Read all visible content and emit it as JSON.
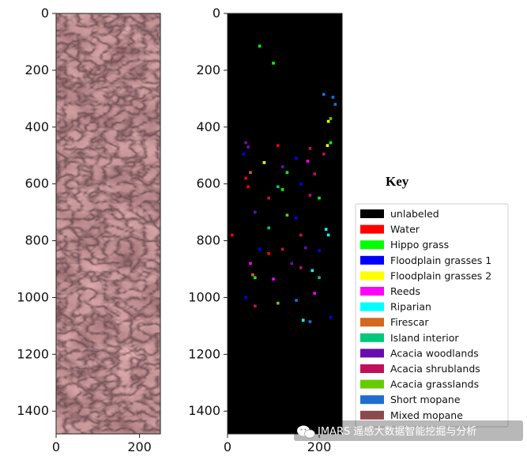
{
  "chart_data": [
    {
      "type": "image",
      "xlim": [
        0,
        250
      ],
      "ylim": [
        1480,
        0
      ],
      "xticks": [
        0,
        200
      ],
      "yticks": [
        0,
        200,
        400,
        600,
        800,
        1000,
        1200,
        1400
      ],
      "xtick_labels": [
        "0",
        "200"
      ],
      "ytick_labels": [
        "0",
        "200",
        "400",
        "600",
        "800",
        "1000",
        "1200",
        "1400"
      ]
    },
    {
      "type": "scatter",
      "xlim": [
        0,
        250
      ],
      "ylim": [
        1480,
        0
      ],
      "xticks": [
        0,
        200
      ],
      "yticks": [
        0,
        200,
        400,
        600,
        800,
        1000,
        1200,
        1400
      ],
      "xtick_labels": [
        "0",
        "200"
      ],
      "ytick_labels": [
        "0",
        "200",
        "400",
        "600",
        "800",
        "1000",
        "1200",
        "1400"
      ],
      "points": [
        {
          "x": 70,
          "y": 115,
          "class": 2
        },
        {
          "x": 100,
          "y": 175,
          "class": 2
        },
        {
          "x": 210,
          "y": 285,
          "class": 12
        },
        {
          "x": 230,
          "y": 295,
          "class": 12
        },
        {
          "x": 235,
          "y": 320,
          "class": 12
        },
        {
          "x": 225,
          "y": 370,
          "class": 11
        },
        {
          "x": 220,
          "y": 380,
          "class": 4
        },
        {
          "x": 225,
          "y": 455,
          "class": 2
        },
        {
          "x": 218,
          "y": 465,
          "class": 4
        },
        {
          "x": 40,
          "y": 455,
          "class": 9
        },
        {
          "x": 45,
          "y": 470,
          "class": 9
        },
        {
          "x": 35,
          "y": 495,
          "class": 3
        },
        {
          "x": 110,
          "y": 465,
          "class": 1
        },
        {
          "x": 180,
          "y": 475,
          "class": 10
        },
        {
          "x": 210,
          "y": 495,
          "class": 10
        },
        {
          "x": 150,
          "y": 510,
          "class": 3
        },
        {
          "x": 175,
          "y": 520,
          "class": 5
        },
        {
          "x": 50,
          "y": 560,
          "class": 7
        },
        {
          "x": 40,
          "y": 580,
          "class": 1
        },
        {
          "x": 80,
          "y": 525,
          "class": 4
        },
        {
          "x": 120,
          "y": 540,
          "class": 9
        },
        {
          "x": 130,
          "y": 560,
          "class": 2
        },
        {
          "x": 190,
          "y": 565,
          "class": 10
        },
        {
          "x": 45,
          "y": 610,
          "class": 1
        },
        {
          "x": 110,
          "y": 610,
          "class": 8
        },
        {
          "x": 120,
          "y": 620,
          "class": 2
        },
        {
          "x": 160,
          "y": 600,
          "class": 3
        },
        {
          "x": 180,
          "y": 640,
          "class": 10
        },
        {
          "x": 200,
          "y": 650,
          "class": 2
        },
        {
          "x": 90,
          "y": 650,
          "class": 10
        },
        {
          "x": 60,
          "y": 700,
          "class": 9
        },
        {
          "x": 130,
          "y": 710,
          "class": 11
        },
        {
          "x": 150,
          "y": 720,
          "class": 3
        },
        {
          "x": 90,
          "y": 755,
          "class": 8
        },
        {
          "x": 160,
          "y": 780,
          "class": 10
        },
        {
          "x": 220,
          "y": 780,
          "class": 6
        },
        {
          "x": 215,
          "y": 760,
          "class": 6
        },
        {
          "x": 10,
          "y": 780,
          "class": 1
        },
        {
          "x": 70,
          "y": 830,
          "class": 3
        },
        {
          "x": 90,
          "y": 845,
          "class": 1
        },
        {
          "x": 120,
          "y": 830,
          "class": 10
        },
        {
          "x": 170,
          "y": 825,
          "class": 9
        },
        {
          "x": 200,
          "y": 835,
          "class": 3
        },
        {
          "x": 50,
          "y": 880,
          "class": 5
        },
        {
          "x": 55,
          "y": 920,
          "class": 7
        },
        {
          "x": 60,
          "y": 930,
          "class": 2
        },
        {
          "x": 100,
          "y": 935,
          "class": 5
        },
        {
          "x": 140,
          "y": 880,
          "class": 9
        },
        {
          "x": 160,
          "y": 895,
          "class": 10
        },
        {
          "x": 185,
          "y": 905,
          "class": 6
        },
        {
          "x": 200,
          "y": 930,
          "class": 8
        },
        {
          "x": 40,
          "y": 1000,
          "class": 3
        },
        {
          "x": 60,
          "y": 1030,
          "class": 10
        },
        {
          "x": 110,
          "y": 1020,
          "class": 11
        },
        {
          "x": 150,
          "y": 1010,
          "class": 12
        },
        {
          "x": 190,
          "y": 985,
          "class": 5
        },
        {
          "x": 165,
          "y": 1080,
          "class": 6
        },
        {
          "x": 180,
          "y": 1085,
          "class": 12
        },
        {
          "x": 225,
          "y": 1070,
          "class": 3
        }
      ]
    }
  ],
  "legend": {
    "title": "Key",
    "entries": [
      {
        "label": "unlabeled",
        "color": "#000000"
      },
      {
        "label": "Water",
        "color": "#ff0000"
      },
      {
        "label": "Hippo grass",
        "color": "#00ff00"
      },
      {
        "label": "Floodplain grasses 1",
        "color": "#0000ff"
      },
      {
        "label": "Floodplain grasses 2",
        "color": "#ffff00"
      },
      {
        "label": "Reeds",
        "color": "#ff00ff"
      },
      {
        "label": "Riparian",
        "color": "#00ffff"
      },
      {
        "label": "Firescar",
        "color": "#d2691e"
      },
      {
        "label": "Island interior",
        "color": "#00c87a"
      },
      {
        "label": "Acacia woodlands",
        "color": "#6a0dad"
      },
      {
        "label": "Acacia shrublands",
        "color": "#c0105a"
      },
      {
        "label": "Acacia grasslands",
        "color": "#66cc00"
      },
      {
        "label": "Short mopane",
        "color": "#1e6fd0"
      },
      {
        "label": "Mixed mopane",
        "color": "#8b4a4a"
      }
    ]
  },
  "watermark": {
    "text": "IMARS 遥感大数据智能挖掘与分析",
    "icon": "wechat-icon"
  }
}
